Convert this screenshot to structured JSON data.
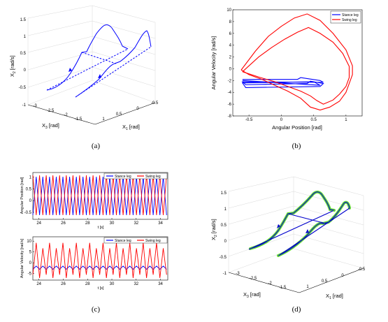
{
  "chart_data": [
    {
      "id": "a",
      "type": "line3d",
      "caption": "(a)",
      "xlabel": "X",
      "xlabel_sub": "1",
      "ylabel": "X",
      "ylabel_sub": "3",
      "zlabel": "X",
      "zlabel_sub": "2",
      "x_unit": " [rad]",
      "y_unit": " [rad]",
      "z_unit": " [rad/s]",
      "x_ticks": [
        "1",
        "0.5",
        "0",
        "-0.5"
      ],
      "y_ticks": [
        "-1.5",
        "-2",
        "-2.5",
        "-3"
      ],
      "z_ticks": [
        "1.5",
        "1",
        "0.5",
        "0",
        "-0.5",
        "-1"
      ],
      "series_color": "#0000ff"
    },
    {
      "id": "b",
      "type": "line",
      "caption": "(b)",
      "xlabel": "Angular Position [rad]",
      "ylabel": "Angular Velocity [rad/s]",
      "xlim": [
        -0.75,
        1.25
      ],
      "ylim": [
        -8,
        10
      ],
      "x_ticks": [
        -0.5,
        0,
        0.5,
        1
      ],
      "y_ticks": [
        -8,
        -6,
        -4,
        -2,
        0,
        2,
        4,
        6,
        8,
        10
      ],
      "series": [
        {
          "name": "Stance leg",
          "color": "#0000ff",
          "x": [
            -0.6,
            0.25,
            0.3,
            0.6,
            0.65,
            -0.6,
            -0.55,
            0.4,
            0.45,
            0.65,
            0.6,
            -0.55,
            -0.6,
            0.5,
            0.6,
            -0.6
          ],
          "y": [
            -1.8,
            -1.8,
            -1.5,
            -2.0,
            -2.3,
            -2.2,
            -2.7,
            -2.5,
            -2.1,
            -2.5,
            -3.0,
            -3.2,
            -2.4,
            -2.2,
            -2.8,
            -2.0
          ]
        },
        {
          "name": "Swing leg",
          "color": "#ff0000",
          "x": [
            -0.62,
            -0.4,
            -0.2,
            0.0,
            0.2,
            0.4,
            0.6,
            0.8,
            1.0,
            1.1,
            1.1,
            1.05,
            1.0,
            0.9,
            0.75,
            0.6,
            0.45,
            0.3,
            0.1,
            -0.1,
            -0.3,
            -0.5,
            -0.62
          ],
          "y": [
            -0.2,
            3.0,
            5.5,
            7.2,
            8.6,
            9.3,
            8.2,
            6.0,
            3.2,
            0.5,
            -1.0,
            -2.5,
            -4.0,
            -5.5,
            -6.5,
            -7.0,
            -6.5,
            -5.0,
            -3.8,
            -2.8,
            -1.8,
            -1.0,
            -0.2
          ]
        },
        {
          "name": "",
          "color": "#ff0000",
          "x": [
            -0.6,
            -0.35,
            -0.15,
            0.05,
            0.25,
            0.42,
            0.6,
            0.8,
            0.95,
            1.05,
            1.05,
            1.0,
            0.9,
            0.8,
            0.65,
            0.55,
            0.45,
            0.3,
            0.1,
            -0.1,
            -0.35,
            -0.6
          ],
          "y": [
            -0.5,
            2.0,
            3.6,
            5.0,
            6.2,
            7.0,
            6.0,
            4.5,
            2.6,
            0.4,
            -1.5,
            -3.0,
            -4.3,
            -5.3,
            -6.0,
            -5.4,
            -4.6,
            -3.8,
            -3.0,
            -2.2,
            -1.4,
            -0.5
          ]
        }
      ]
    },
    {
      "id": "c1",
      "type": "line",
      "caption": "(c)",
      "xlabel": "t [s]",
      "ylabel": "Angular Position [rad]",
      "xlim": [
        23.5,
        34.6
      ],
      "ylim": [
        -0.8,
        1.2
      ],
      "x_ticks": [
        24,
        26,
        28,
        30,
        32,
        34
      ],
      "y_ticks": [
        -0.5,
        0,
        0.5,
        1
      ],
      "period": 0.55,
      "series": [
        {
          "name": "Stance leg",
          "color": "#0000ff",
          "min": -0.62,
          "max": 1.02
        },
        {
          "name": "Swing leg",
          "color": "#ff0000",
          "min": -0.62,
          "max": 1.08
        }
      ]
    },
    {
      "id": "c2",
      "type": "line",
      "xlabel": "t [s]",
      "ylabel": "Angular Velocity [rad/s]",
      "xlim": [
        23.5,
        34.6
      ],
      "ylim": [
        -8,
        12
      ],
      "x_ticks": [
        24,
        26,
        28,
        30,
        32,
        34
      ],
      "y_ticks": [
        -5,
        0,
        5,
        10
      ],
      "period": 0.55,
      "series": [
        {
          "name": "Stance leg",
          "color": "#0000ff",
          "min": -3.0,
          "max": -1.5
        },
        {
          "name": "Swing leg",
          "color": "#ff0000",
          "min": -7.0,
          "max": 9.2
        }
      ]
    },
    {
      "id": "d",
      "type": "line3d",
      "caption": "(d)",
      "xlabel": "X",
      "xlabel_sub": "1",
      "ylabel": "X",
      "ylabel_sub": "3",
      "zlabel": "X",
      "zlabel_sub": "2",
      "x_unit": " [rad]",
      "y_unit": " [rad]",
      "z_unit": " [rad/s]",
      "x_ticks": [
        "1",
        "0.5",
        "0",
        "-0.5"
      ],
      "y_ticks": [
        "-1.5",
        "-2",
        "-2.5",
        "-3"
      ],
      "z_ticks": [
        "1.5",
        "1",
        "0.5",
        "0",
        "-0.5",
        "-1"
      ],
      "series_colors": [
        "#0000ff",
        "#66dd33"
      ]
    }
  ]
}
